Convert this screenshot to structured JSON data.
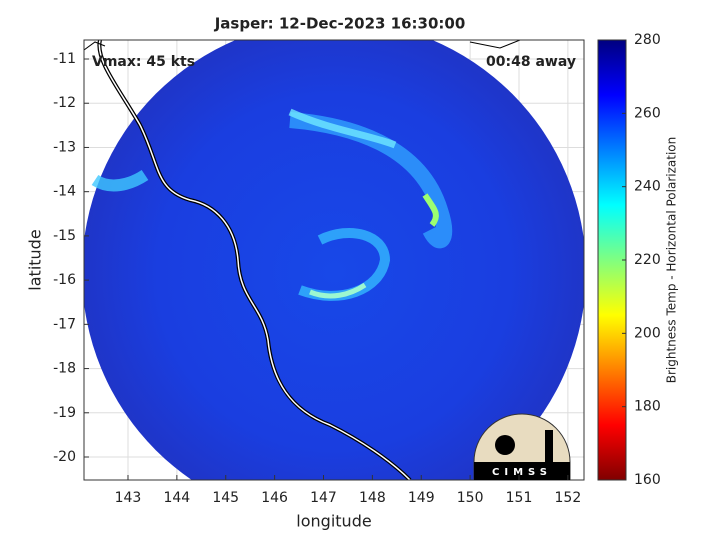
{
  "title": "Jasper: 12-Dec-2023 16:30:00",
  "annotations": {
    "left": "Vmax: 45 kts",
    "right": "00:48 away"
  },
  "map": {
    "xlabel": "longitude",
    "ylabel": "latitude",
    "xlim": [
      142.1,
      152.33
    ],
    "ylim": [
      -20.52,
      -10.57
    ],
    "xticks": [
      143,
      144,
      145,
      146,
      147,
      148,
      149,
      150,
      151,
      152
    ],
    "yticks": [
      -20,
      -19,
      -18,
      -17,
      -16,
      -15,
      -14,
      -13,
      -12,
      -11
    ],
    "grid": true
  },
  "colorbar": {
    "label": "Brightness Temp - Horizontal Polarization",
    "colormap": "jet",
    "lim": [
      160,
      280
    ],
    "ticks": [
      160,
      180,
      200,
      220,
      240,
      260,
      280
    ]
  },
  "logo": "CIMSS"
}
